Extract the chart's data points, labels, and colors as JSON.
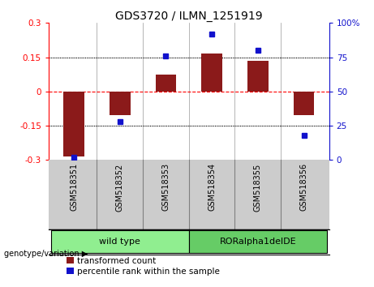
{
  "title": "GDS3720 / ILMN_1251919",
  "samples": [
    "GSM518351",
    "GSM518352",
    "GSM518353",
    "GSM518354",
    "GSM518355",
    "GSM518356"
  ],
  "transformed_count": [
    -0.285,
    -0.105,
    0.075,
    0.165,
    0.135,
    -0.105
  ],
  "percentile_rank": [
    2,
    28,
    76,
    92,
    80,
    18
  ],
  "groups": [
    {
      "label": "wild type",
      "samples": [
        0,
        1,
        2
      ],
      "color": "#90ee90"
    },
    {
      "label": "RORalpha1delDE",
      "samples": [
        3,
        4,
        5
      ],
      "color": "#66cc66"
    }
  ],
  "bar_color": "#8B1A1A",
  "point_color": "#1111CC",
  "ylim_left": [
    -0.3,
    0.3
  ],
  "ylim_right": [
    0,
    100
  ],
  "yticks_left": [
    -0.3,
    -0.15,
    0,
    0.15,
    0.3
  ],
  "yticks_right": [
    0,
    25,
    50,
    75,
    100
  ],
  "ytick_labels_right": [
    "0",
    "25",
    "50",
    "75",
    "100%"
  ],
  "hlines": [
    0.15,
    0,
    -0.15
  ],
  "hline_colors": [
    "black",
    "red",
    "black"
  ],
  "hline_styles": [
    "dotted",
    "dashed",
    "dotted"
  ],
  "plot_bg": "#ffffff",
  "tick_area_bg": "#cccccc",
  "group_area_bg": "#ffffff",
  "genotype_label": "genotype/variation",
  "legend_bar_label": "transformed count",
  "legend_point_label": "percentile rank within the sample",
  "bar_width": 0.45,
  "xlim": [
    -0.55,
    5.55
  ]
}
